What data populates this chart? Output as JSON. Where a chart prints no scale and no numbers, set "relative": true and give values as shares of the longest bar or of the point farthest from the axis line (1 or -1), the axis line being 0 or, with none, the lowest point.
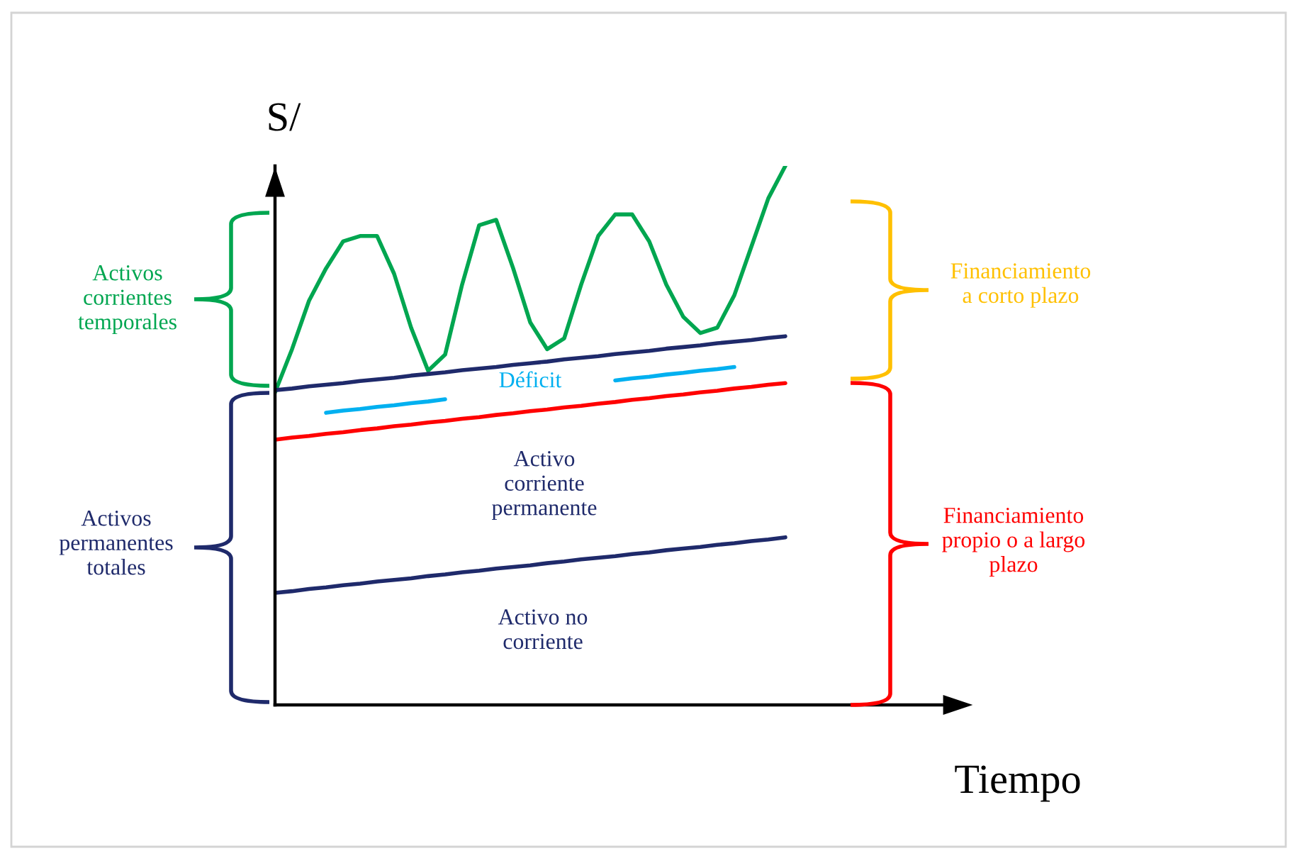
{
  "chart_data": {
    "type": "line",
    "relative": true,
    "xlabel": "Tiempo",
    "ylabel": "S/",
    "categories": [
      null,
      null,
      null,
      null,
      null,
      null,
      null,
      null,
      null,
      null,
      null,
      null,
      null,
      null,
      null,
      null,
      null,
      null,
      null,
      null,
      null,
      null,
      null,
      null,
      null,
      null,
      null,
      null,
      null,
      null,
      null,
      null,
      null,
      null,
      null,
      null,
      null,
      null,
      null,
      null,
      null
    ],
    "series": [
      {
        "color": "#00a650",
        "values": [
          0.58,
          0.66,
          0.75,
          0.81,
          0.86,
          0.87,
          0.87,
          0.8,
          0.7,
          0.62,
          0.65,
          0.78,
          0.89,
          0.9,
          0.81,
          0.71,
          0.66,
          0.68,
          0.78,
          0.87,
          0.91,
          0.91,
          0.86,
          0.78,
          0.72,
          0.69,
          0.7,
          0.76,
          0.85,
          0.94,
          1,
          null,
          null,
          null,
          null,
          null,
          null,
          null,
          null,
          null,
          null
        ]
      },
      {
        "color": "#1f2a6b",
        "values": [
          0.584,
          0.587,
          0.591,
          0.594,
          0.597,
          0.601,
          0.604,
          0.607,
          0.611,
          0.614,
          0.617,
          0.621,
          0.624,
          0.627,
          0.631,
          0.634,
          0.637,
          0.641,
          0.644,
          0.647,
          0.651,
          0.654,
          0.657,
          0.661,
          0.664,
          0.667,
          0.671,
          0.674,
          0.677,
          0.681,
          0.684,
          null,
          null,
          null,
          null,
          null,
          null,
          null,
          null,
          null,
          null
        ]
      },
      {
        "color": "#ff0000",
        "values": [
          0.492,
          0.496,
          0.499,
          0.503,
          0.506,
          0.51,
          0.513,
          0.517,
          0.52,
          0.524,
          0.527,
          0.531,
          0.534,
          0.538,
          0.541,
          0.545,
          0.548,
          0.552,
          0.555,
          0.559,
          0.562,
          0.566,
          0.569,
          0.573,
          0.576,
          0.58,
          0.583,
          0.587,
          0.59,
          0.594,
          0.597,
          null,
          null,
          null,
          null,
          null,
          null,
          null,
          null,
          null,
          null
        ]
      },
      {
        "color": "#1f2a6b",
        "values": [
          0.208,
          0.211,
          0.215,
          0.218,
          0.222,
          0.225,
          0.229,
          0.232,
          0.235,
          0.239,
          0.242,
          0.246,
          0.249,
          0.253,
          0.256,
          0.259,
          0.263,
          0.266,
          0.27,
          0.273,
          0.276,
          0.28,
          0.283,
          0.287,
          0.29,
          0.293,
          0.297,
          0.3,
          0.304,
          0.307,
          0.311,
          null,
          null,
          null,
          null,
          null,
          null,
          null,
          null,
          null,
          null
        ]
      },
      {
        "name": "Déficit",
        "color": "#00b0f0",
        "values": [
          null,
          null,
          null,
          0.542,
          0.546,
          0.549,
          0.553,
          0.556,
          0.56,
          0.563,
          0.567,
          null,
          null,
          null,
          null,
          null,
          null,
          null,
          null,
          null,
          0.602,
          0.606,
          0.609,
          0.613,
          0.616,
          0.62,
          0.623,
          0.627,
          null,
          null,
          null,
          null,
          null,
          null,
          null,
          null,
          null,
          null,
          null,
          null,
          null
        ]
      }
    ],
    "annotations": [
      "Activos\ncorrientes\ntemporales",
      "Activos\npermanentes\ntotales",
      "Financiamiento\na corto plazo",
      "Financiamiento\npropio o a largo\nplazo",
      "Activo\ncorriente\npermanente",
      "Activo no\ncorriente"
    ]
  }
}
